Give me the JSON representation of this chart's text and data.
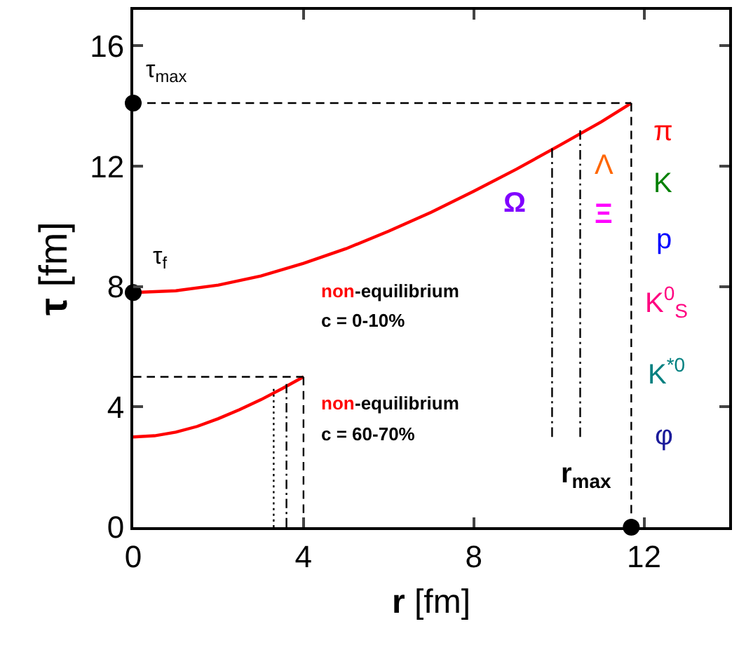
{
  "chart_data": {
    "type": "line",
    "xlabel": "r [fm]",
    "ylabel": "τ [fm]",
    "xlim": [
      0,
      14
    ],
    "xticks": [
      0,
      4,
      8,
      12
    ],
    "ylim": [
      0,
      17.2
    ],
    "yticks": [
      0,
      4,
      8,
      12,
      16
    ],
    "series": [
      {
        "color": "#ff0000",
        "x": [
          0,
          1,
          2,
          3,
          4,
          5,
          6,
          7,
          8,
          9,
          10,
          11,
          11.7
        ],
        "values": [
          7.8,
          7.86,
          8.05,
          8.35,
          8.77,
          9.26,
          9.84,
          10.47,
          11.17,
          11.9,
          12.68,
          13.48,
          14.1
        ],
        "line_style": "solid",
        "marker": "none"
      },
      {
        "color": "#ff0000",
        "x": [
          0,
          0.5,
          1,
          1.5,
          2,
          2.5,
          3,
          3.5,
          4
        ],
        "values": [
          3.0,
          3.04,
          3.16,
          3.35,
          3.61,
          3.91,
          4.24,
          4.61,
          5.0
        ],
        "line_style": "solid",
        "marker": "none"
      },
      {
        "color": "#000000",
        "x": [
          0,
          11.7
        ],
        "values": [
          14.1,
          14.1
        ],
        "line_style": "dashed",
        "marker": "none"
      },
      {
        "color": "#000000",
        "x": [
          11.7,
          11.7
        ],
        "values": [
          0,
          14.1
        ],
        "line_style": "dashed",
        "marker": "none"
      },
      {
        "color": "#000000",
        "x": [
          0,
          4
        ],
        "values": [
          5.0,
          5.0
        ],
        "line_style": "dashed",
        "marker": "none"
      },
      {
        "color": "#000000",
        "x": [
          4,
          4
        ],
        "values": [
          0,
          5.0
        ],
        "line_style": "dashed",
        "marker": "none"
      },
      {
        "color": "#000000",
        "x": [
          9.84,
          9.84
        ],
        "values": [
          3.0,
          12.6
        ],
        "line_style": "dashdot",
        "marker": "none"
      },
      {
        "color": "#000000",
        "x": [
          10.5,
          10.5
        ],
        "values": [
          3.0,
          13.2
        ],
        "line_style": "dashdot",
        "marker": "none"
      },
      {
        "color": "#000000",
        "x": [
          3.3,
          3.3
        ],
        "values": [
          0,
          4.6
        ],
        "line_style": "dotted",
        "marker": "none"
      },
      {
        "color": "#000000",
        "x": [
          3.6,
          3.6
        ],
        "values": [
          0,
          4.76
        ],
        "line_style": "dashdot",
        "marker": "none"
      },
      {
        "type": "scatter",
        "color": "#000000",
        "x": [
          0,
          0,
          11.7
        ],
        "values": [
          14.1,
          7.8,
          0
        ],
        "marker": "circle"
      }
    ],
    "annotations": [
      "τ$_{max}$",
      "τ$_{f}$",
      "r$_{max}$",
      "π",
      "K",
      "p",
      "K$^{0}$$_{S}$",
      "K$^{*0}$",
      "φ",
      "Ω",
      "Λ",
      "Ξ",
      "non",
      "-equilibrium",
      "c = 0-10%",
      "non",
      "-equilibrium",
      "c = 60-70%"
    ]
  }
}
